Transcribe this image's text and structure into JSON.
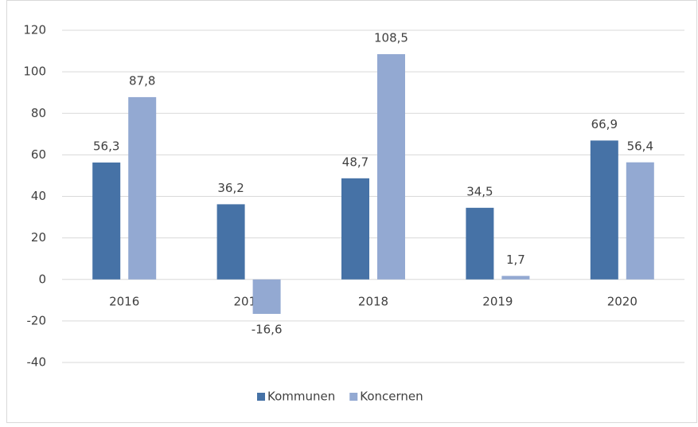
{
  "chart_data": {
    "type": "bar",
    "categories": [
      "2016",
      "2017",
      "2018",
      "2019",
      "2020"
    ],
    "series": [
      {
        "name": "Kommunen",
        "color": "#4672a6",
        "values": [
          56.3,
          36.2,
          48.7,
          34.5,
          66.9
        ],
        "value_labels": [
          "56,3",
          "36,2",
          "48,7",
          "34,5",
          "66,9"
        ]
      },
      {
        "name": "Koncernen",
        "color": "#93a9d2",
        "values": [
          87.8,
          -16.6,
          108.5,
          1.7,
          56.4
        ],
        "value_labels": [
          "87,8",
          "-16,6",
          "108,5",
          "1,7",
          "56,4"
        ]
      }
    ],
    "ylim": [
      -40,
      120
    ],
    "yticks": [
      -40,
      -20,
      0,
      20,
      40,
      60,
      80,
      100,
      120
    ],
    "grid": true,
    "legend": "bottom"
  }
}
